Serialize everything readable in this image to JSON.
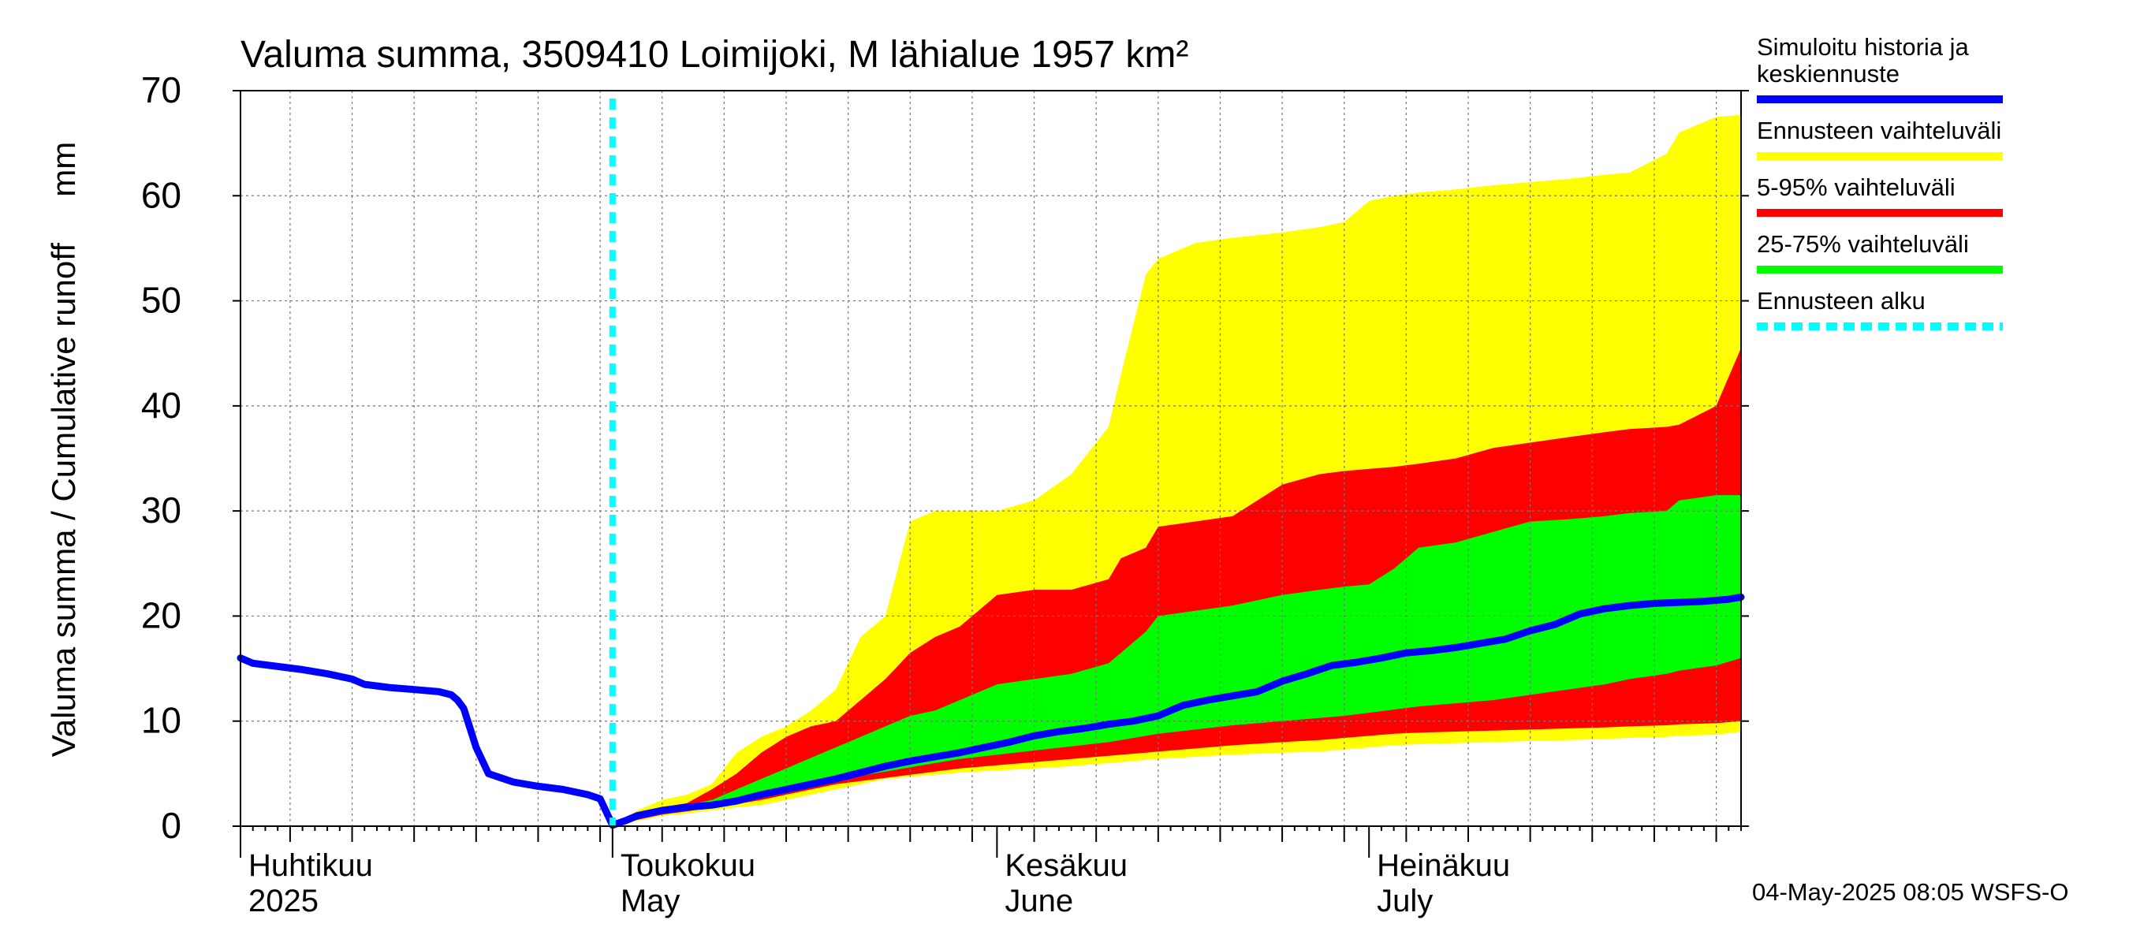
{
  "chart_data": {
    "type": "area",
    "title": "Valuma summa, 3509410 Loimijoki, M lähialue 1957 km²",
    "ylabel": "Valuma summa / Cumulative runoff     mm",
    "ylim": [
      0,
      70
    ],
    "yticks": [
      0,
      10,
      20,
      30,
      40,
      50,
      60,
      70
    ],
    "xlim": [
      0,
      121
    ],
    "x_unit": "days since 2025-04-01",
    "grid": true,
    "month_labels": [
      {
        "fi": "Huhtikuu",
        "en": "2025",
        "day": 0
      },
      {
        "fi": "Toukokuu",
        "en": "May",
        "day": 30
      },
      {
        "fi": "Kesäkuu",
        "en": "June",
        "day": 61
      },
      {
        "fi": "Heinäkuu",
        "en": "July",
        "day": 91
      }
    ],
    "forecast_start_day": 30,
    "legend": [
      {
        "label": "Simuloitu historia ja keskiennuste",
        "color": "#0000ff",
        "style": "solid"
      },
      {
        "label": "Ennusteen vaihteluväli",
        "color": "#ffff00",
        "style": "solid"
      },
      {
        "label": "5-95% vaihteluväli",
        "color": "#ff0000",
        "style": "solid"
      },
      {
        "label": "25-75% vaihteluväli",
        "color": "#00ff00",
        "style": "solid"
      },
      {
        "label": "Ennusteen alku",
        "color": "#00ffff",
        "style": "dashed"
      }
    ],
    "series": [
      {
        "name": "Ennusteen vaihteluväli",
        "color": "#ffff00",
        "x": [
          30,
          32,
          34,
          36,
          38,
          40,
          42,
          44,
          46,
          48,
          50,
          52,
          54,
          56,
          58,
          61,
          64,
          67,
          70,
          71,
          73,
          74,
          77,
          80,
          84,
          87,
          89,
          91,
          93,
          95,
          98,
          101,
          104,
          107,
          110,
          112,
          115,
          116,
          119,
          121
        ],
        "upper": [
          0,
          1.5,
          2.5,
          3,
          4,
          7,
          8.5,
          9.5,
          11,
          13,
          18,
          20,
          29,
          30,
          30,
          30,
          31,
          33.5,
          38,
          43,
          52.5,
          54,
          55.5,
          56,
          56.5,
          57,
          57.5,
          59.5,
          60,
          60.3,
          60.6,
          61,
          61.3,
          61.6,
          62,
          62.2,
          64,
          66,
          67.5,
          67.7
        ],
        "lower": [
          0,
          0.5,
          1,
          1.2,
          1.5,
          1.8,
          2,
          2.5,
          3,
          3.5,
          4,
          4.5,
          4.7,
          4.9,
          5.1,
          5.3,
          5.5,
          5.7,
          6,
          6.1,
          6.3,
          6.4,
          6.6,
          6.8,
          7,
          7.1,
          7.3,
          7.5,
          7.7,
          7.8,
          7.9,
          8,
          8.1,
          8.2,
          8.3,
          8.4,
          8.5,
          8.6,
          8.7,
          9
        ]
      },
      {
        "name": "5-95% vaihteluväli",
        "color": "#ff0000",
        "x": [
          30,
          32,
          34,
          36,
          38,
          40,
          42,
          44,
          46,
          48,
          50,
          52,
          54,
          56,
          58,
          61,
          64,
          67,
          70,
          71,
          73,
          74,
          77,
          80,
          84,
          87,
          89,
          91,
          93,
          95,
          98,
          101,
          104,
          107,
          110,
          112,
          115,
          116,
          119,
          121
        ],
        "upper": [
          0,
          1,
          1.8,
          2.2,
          3.5,
          5,
          7,
          8.5,
          9.5,
          10,
          12,
          14,
          16.5,
          18,
          19,
          22,
          22.5,
          22.5,
          23.5,
          25.5,
          26.5,
          28.5,
          29,
          29.5,
          32.5,
          33.5,
          33.8,
          34,
          34.2,
          34.5,
          35,
          36,
          36.5,
          37,
          37.5,
          37.8,
          38,
          38.2,
          40,
          45.5
        ],
        "lower": [
          0,
          0.6,
          1.1,
          1.4,
          1.8,
          2.1,
          2.5,
          3,
          3.5,
          4,
          4.3,
          4.6,
          4.9,
          5.2,
          5.5,
          5.8,
          6.1,
          6.4,
          6.7,
          6.8,
          7,
          7.1,
          7.4,
          7.7,
          8,
          8.2,
          8.4,
          8.6,
          8.8,
          8.9,
          9,
          9.1,
          9.2,
          9.3,
          9.4,
          9.5,
          9.6,
          9.7,
          9.8,
          10
        ]
      },
      {
        "name": "25-75% vaihteluväli",
        "color": "#00ff00",
        "x": [
          30,
          32,
          34,
          36,
          38,
          40,
          42,
          44,
          46,
          48,
          50,
          52,
          54,
          56,
          58,
          61,
          64,
          67,
          70,
          71,
          73,
          74,
          77,
          80,
          84,
          87,
          89,
          91,
          93,
          95,
          98,
          101,
          104,
          107,
          110,
          112,
          115,
          116,
          119,
          121
        ],
        "upper": [
          0,
          1.2,
          1.7,
          2,
          2.5,
          3.5,
          4.5,
          5.5,
          6.5,
          7.5,
          8.5,
          9.5,
          10.5,
          11,
          12,
          13.5,
          14,
          14.5,
          15.5,
          16.5,
          18.5,
          20,
          20.5,
          21,
          22,
          22.5,
          22.8,
          23,
          24.5,
          26.5,
          27,
          28,
          29,
          29.2,
          29.5,
          29.8,
          30,
          31,
          31.5,
          31.5
        ],
        "lower": [
          0,
          0.8,
          1.3,
          1.6,
          2,
          2.5,
          3,
          3.5,
          4,
          4.5,
          4.8,
          5.2,
          5.6,
          6,
          6.4,
          6.8,
          7.2,
          7.6,
          8,
          8.2,
          8.6,
          8.8,
          9.2,
          9.6,
          10,
          10.3,
          10.5,
          10.8,
          11.1,
          11.4,
          11.7,
          12,
          12.5,
          13,
          13.5,
          14,
          14.5,
          14.8,
          15.3,
          16
        ]
      },
      {
        "name": "Simuloitu historia ja keskiennuste",
        "color": "#0000ff",
        "x": [
          0,
          1,
          3,
          5,
          7,
          9,
          10,
          12,
          14,
          16,
          17,
          17.5,
          18,
          19,
          20,
          22,
          24,
          26,
          28,
          29,
          30,
          31,
          32,
          34,
          36,
          38,
          40,
          42,
          44,
          46,
          48,
          50,
          52,
          54,
          56,
          58,
          60,
          62,
          64,
          66,
          68,
          70,
          72,
          74,
          76,
          78,
          80,
          82,
          84,
          86,
          88,
          90,
          92,
          94,
          96,
          98,
          100,
          102,
          104,
          106,
          108,
          110,
          112,
          114,
          116,
          118,
          120,
          121
        ],
        "values": [
          16,
          15.5,
          15.2,
          14.9,
          14.5,
          14,
          13.5,
          13.2,
          13,
          12.8,
          12.5,
          12,
          11.2,
          7.5,
          5,
          4.2,
          3.8,
          3.5,
          3,
          2.6,
          0.1,
          0.5,
          1,
          1.5,
          1.8,
          2,
          2.4,
          3,
          3.5,
          4,
          4.5,
          5.1,
          5.7,
          6.2,
          6.6,
          7,
          7.5,
          8,
          8.6,
          9,
          9.3,
          9.7,
          10,
          10.5,
          11.5,
          12,
          12.4,
          12.8,
          13.8,
          14.5,
          15.3,
          15.6,
          16,
          16.5,
          16.7,
          17,
          17.4,
          17.8,
          18.6,
          19.2,
          20.2,
          20.7,
          21,
          21.2,
          21.3,
          21.4,
          21.6,
          21.8
        ]
      }
    ]
  },
  "footer": {
    "timestamp": "04-May-2025 08:05 WSFS-O"
  }
}
